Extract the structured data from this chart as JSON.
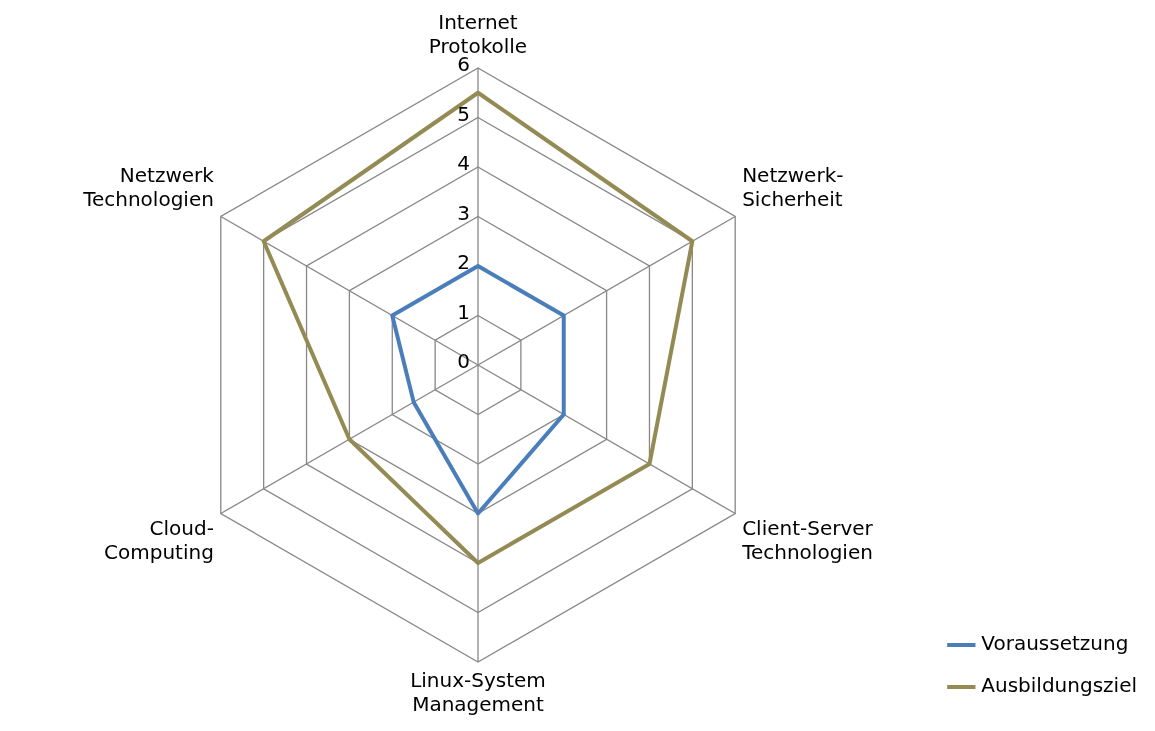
{
  "chart_data": {
    "type": "radar",
    "categories": [
      "Internet Protokolle",
      "Netzwerk-Sicherheit",
      "Client-Server Technologien",
      "Linux-System Management",
      "Cloud-Computing",
      "Netzwerk Technologien"
    ],
    "series": [
      {
        "name": "Voraussetzung",
        "color": "#4a7ebb",
        "values": [
          2,
          2,
          2,
          3,
          1.5,
          2
        ]
      },
      {
        "name": "Ausbildungsziel",
        "color": "#948a54",
        "values": [
          5.5,
          5,
          4,
          4,
          3,
          5
        ]
      }
    ],
    "ylim": [
      0,
      6
    ],
    "yticks": [
      0,
      1,
      2,
      3,
      4,
      5,
      6
    ],
    "grid": true,
    "legend": "bottom right",
    "marker": "none"
  }
}
